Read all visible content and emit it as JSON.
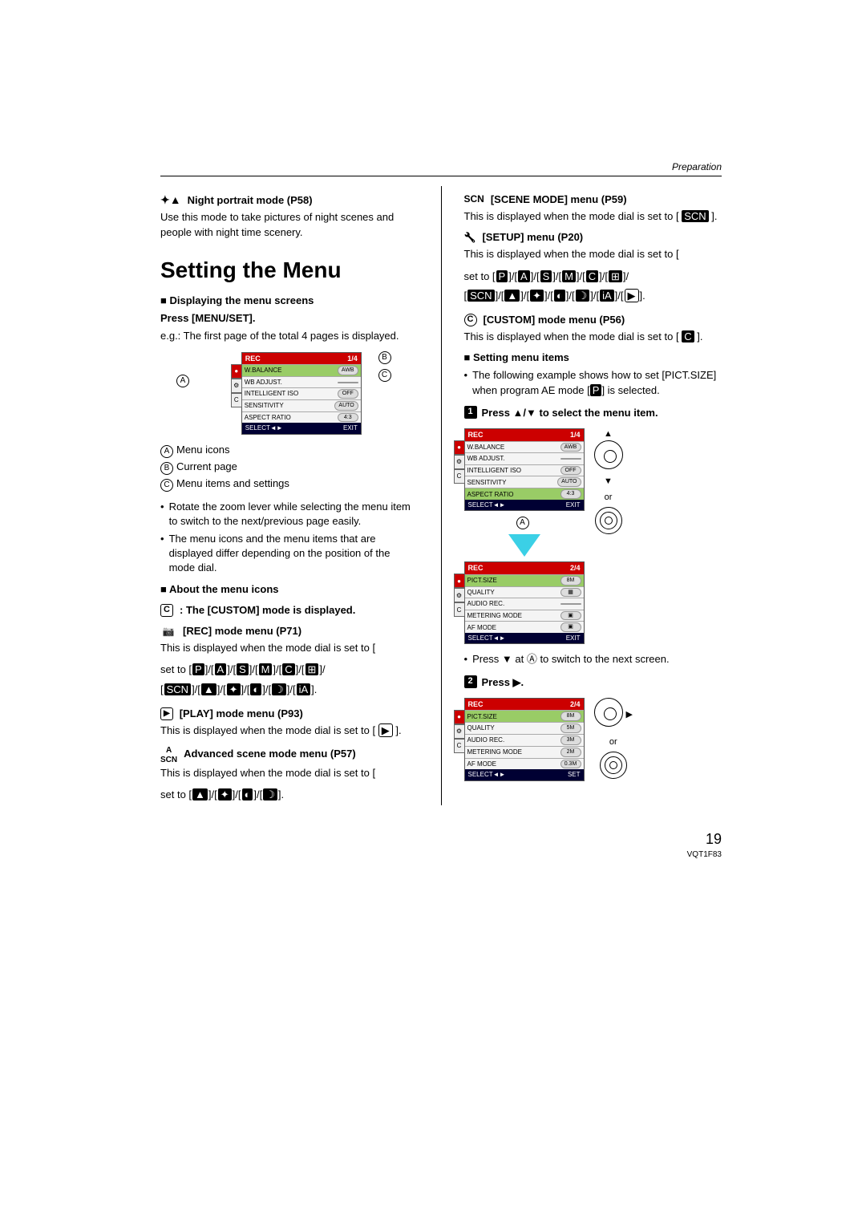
{
  "header": {
    "section_label": "Preparation"
  },
  "left": {
    "night_mode": {
      "title": "Night portrait mode (P58)",
      "desc": "Use this mode to take pictures of night scenes and people with night time scenery."
    },
    "main_heading": "Setting the Menu",
    "displaying_heading": "Displaying the menu screens",
    "press_menu": "Press [MENU/SET].",
    "eg_text": "e.g.: The first page of the total 4 pages is displayed.",
    "lcd1": {
      "header_left": "REC",
      "header_right": "1/4",
      "rows": [
        {
          "label": "W.BALANCE",
          "val": "AWB",
          "sel": true
        },
        {
          "label": "WB ADJUST.",
          "val": ""
        },
        {
          "label": "INTELLIGENT ISO",
          "val": "OFF"
        },
        {
          "label": "SENSITIVITY",
          "val": "AUTO"
        },
        {
          "label": "ASPECT RATIO",
          "val": "4:3"
        }
      ],
      "footer_left": "SELECT",
      "footer_right": "EXIT"
    },
    "annot_a": "A",
    "annot_b": "B",
    "annot_c": "C",
    "legend": {
      "a": "Menu icons",
      "b": "Current page",
      "c": "Menu items and settings"
    },
    "tip1": "Rotate the zoom lever while selecting the menu item to switch to the next/previous page easily.",
    "tip2": "The menu icons and the menu items that are displayed differ depending on the position of the mode dial.",
    "about_icons": "About the menu icons",
    "custom_line": "The [CUSTOM] mode is displayed.",
    "rec_menu": {
      "title": "[REC] mode menu (P71)",
      "desc": "This is displayed when the mode dial is set to [",
      "modes_a": [
        "P",
        "A",
        "S",
        "M",
        "C"
      ],
      "modes_b": [
        "SCN"
      ]
    },
    "play_menu": {
      "title": "[PLAY] mode menu (P93)",
      "desc": "This is displayed when the mode dial is set to [",
      "close": "]."
    },
    "adv_scene": {
      "label_top": "A",
      "label_bot": "SCN",
      "title": "Advanced scene mode menu (P57)",
      "desc": "This is displayed when the mode dial is set to [",
      "close": "]."
    }
  },
  "right": {
    "scene_menu": {
      "label": "SCN",
      "title": "[SCENE MODE] menu (P59)",
      "desc": "This is displayed when the mode dial is set to [",
      "close": "]."
    },
    "setup_menu": {
      "title": "[SETUP] menu (P20)",
      "desc": "This is displayed when the mode dial is set to [",
      "close": "]."
    },
    "custom_menu": {
      "title": "[CUSTOM] mode menu (P56)",
      "desc": "This is displayed when the mode dial is set to [",
      "close": "]."
    },
    "setting_items": "Setting menu items",
    "example_text": "The following example shows how to set [PICT.SIZE] when program AE mode [",
    "example_close": "] is selected.",
    "step1": "Press ▲/▼ to select the menu item.",
    "lcd2a": {
      "header_left": "REC",
      "header_right": "1/4",
      "rows": [
        {
          "label": "W.BALANCE",
          "val": "AWB"
        },
        {
          "label": "WB ADJUST.",
          "val": ""
        },
        {
          "label": "INTELLIGENT ISO",
          "val": "OFF"
        },
        {
          "label": "SENSITIVITY",
          "val": "AUTO"
        },
        {
          "label": "ASPECT RATIO",
          "val": "4:3",
          "sel": true
        }
      ],
      "footer_left": "SELECT",
      "footer_right": "EXIT"
    },
    "lcd2b": {
      "header_left": "REC",
      "header_right": "2/4",
      "rows": [
        {
          "label": "PICT.SIZE",
          "val": "8M",
          "sel": true
        },
        {
          "label": "QUALITY",
          "val": "▦"
        },
        {
          "label": "AUDIO REC.",
          "val": ""
        },
        {
          "label": "METERING MODE",
          "val": "▣"
        },
        {
          "label": "AF MODE",
          "val": "▣"
        }
      ],
      "footer_left": "SELECT",
      "footer_right": "EXIT"
    },
    "or": "or",
    "press_down_tip": "Press ▼ at Ⓐ to switch to the next screen.",
    "step2": "Press ▶.",
    "lcd3": {
      "header_left": "REC",
      "header_right": "2/4",
      "rows": [
        {
          "label": "PICT.SIZE",
          "val": "8M",
          "sel": true
        },
        {
          "label": "QUALITY",
          "val": "5M"
        },
        {
          "label": "AUDIO REC.",
          "val": "3M"
        },
        {
          "label": "METERING MODE",
          "val": "2M"
        },
        {
          "label": "AF MODE",
          "val": "0.3M"
        }
      ],
      "footer_left": "SELECT",
      "footer_right": "SET"
    },
    "circ_a": "A"
  },
  "footer": {
    "page": "19",
    "doc_id": "VQT1F83"
  }
}
